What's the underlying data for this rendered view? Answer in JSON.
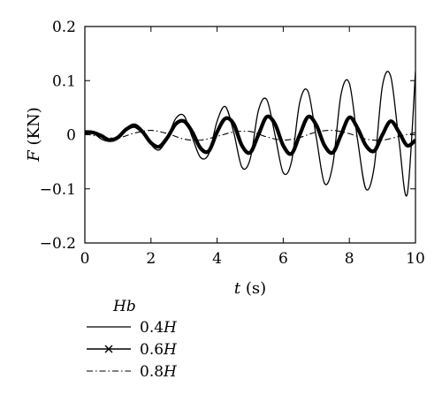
{
  "chart_data": {
    "type": "line",
    "xlabel_var": "t",
    "xlabel_unit": " (s)",
    "ylabel_var": "F",
    "ylabel_unit": " (KN)",
    "xlim": [
      0,
      10
    ],
    "ylim": [
      -0.2,
      0.2
    ],
    "xticks": [
      0,
      2,
      4,
      6,
      8,
      10
    ],
    "xtick_labels": [
      "0",
      "2",
      "4",
      "6",
      "8",
      "10"
    ],
    "yticks": [
      -0.2,
      -0.1,
      0,
      0.1,
      0.2
    ],
    "ytick_labels": [
      "−0.2",
      "−0.1",
      "0",
      "0.1",
      "0.2"
    ],
    "grid": false,
    "legend_title": "Hb",
    "legend_position": "below-left",
    "series": [
      {
        "name_num": "0.4",
        "name_var": "H",
        "style": "thin-solid",
        "x": [
          0,
          0.25,
          0.5,
          0.75,
          1.0,
          1.25,
          1.5,
          1.75,
          2.0,
          2.25,
          2.5,
          2.75,
          3.0,
          3.25,
          3.5,
          3.75,
          4.0,
          4.25,
          4.5,
          4.75,
          5.0,
          5.25,
          5.5,
          5.75,
          6.0,
          6.25,
          6.5,
          6.75,
          7.0,
          7.25,
          7.5,
          7.75,
          8.0,
          8.25,
          8.5,
          8.75,
          9.0,
          9.25,
          9.5,
          9.75,
          10.0
        ],
        "y": [
          0.005,
          0.003,
          -0.008,
          -0.012,
          -0.003,
          0.012,
          0.02,
          0.008,
          -0.018,
          -0.028,
          -0.005,
          0.03,
          0.035,
          -0.005,
          -0.042,
          -0.035,
          0.025,
          0.052,
          0.005,
          -0.06,
          -0.045,
          0.045,
          0.065,
          0.0,
          -0.07,
          -0.05,
          0.06,
          0.08,
          -0.005,
          -0.09,
          -0.055,
          0.075,
          0.095,
          -0.01,
          -0.1,
          -0.06,
          0.09,
          0.108,
          -0.01,
          -0.11,
          0.117
        ]
      },
      {
        "name_num": "0.6",
        "name_var": "H",
        "style": "thick-solid",
        "x": [
          0,
          0.25,
          0.5,
          0.75,
          1.0,
          1.25,
          1.5,
          1.75,
          2.0,
          2.25,
          2.5,
          2.75,
          3.0,
          3.25,
          3.5,
          3.75,
          4.0,
          4.25,
          4.5,
          4.75,
          5.0,
          5.25,
          5.5,
          5.75,
          6.0,
          6.25,
          6.5,
          6.75,
          7.0,
          7.25,
          7.5,
          7.75,
          8.0,
          8.25,
          8.5,
          8.75,
          9.0,
          9.25,
          9.5,
          9.75,
          10.0
        ],
        "y": [
          0.005,
          0.004,
          -0.002,
          -0.01,
          -0.005,
          0.01,
          0.016,
          0.005,
          -0.015,
          -0.022,
          -0.005,
          0.02,
          0.025,
          0.005,
          -0.025,
          -0.03,
          0.005,
          0.03,
          0.02,
          -0.02,
          -0.033,
          0.0,
          0.033,
          0.02,
          -0.02,
          -0.035,
          0.0,
          0.033,
          0.018,
          -0.02,
          -0.033,
          0.0,
          0.032,
          0.012,
          -0.02,
          -0.03,
          0.0,
          0.025,
          0.005,
          -0.02,
          -0.01
        ]
      },
      {
        "name_num": "0.8",
        "name_var": "H",
        "style": "dash-dot",
        "x": [
          0,
          0.5,
          1.0,
          1.5,
          2.0,
          2.5,
          3.0,
          3.5,
          4.0,
          4.5,
          5.0,
          5.5,
          6.0,
          6.5,
          7.0,
          7.5,
          8.0,
          8.5,
          9.0,
          9.5,
          10.0
        ],
        "y": [
          0.002,
          -0.004,
          -0.006,
          0.003,
          0.008,
          0.002,
          -0.008,
          -0.01,
          -0.003,
          0.005,
          0.006,
          -0.004,
          -0.01,
          -0.005,
          0.005,
          0.008,
          0.002,
          -0.008,
          -0.01,
          -0.003,
          0.004
        ]
      }
    ]
  }
}
